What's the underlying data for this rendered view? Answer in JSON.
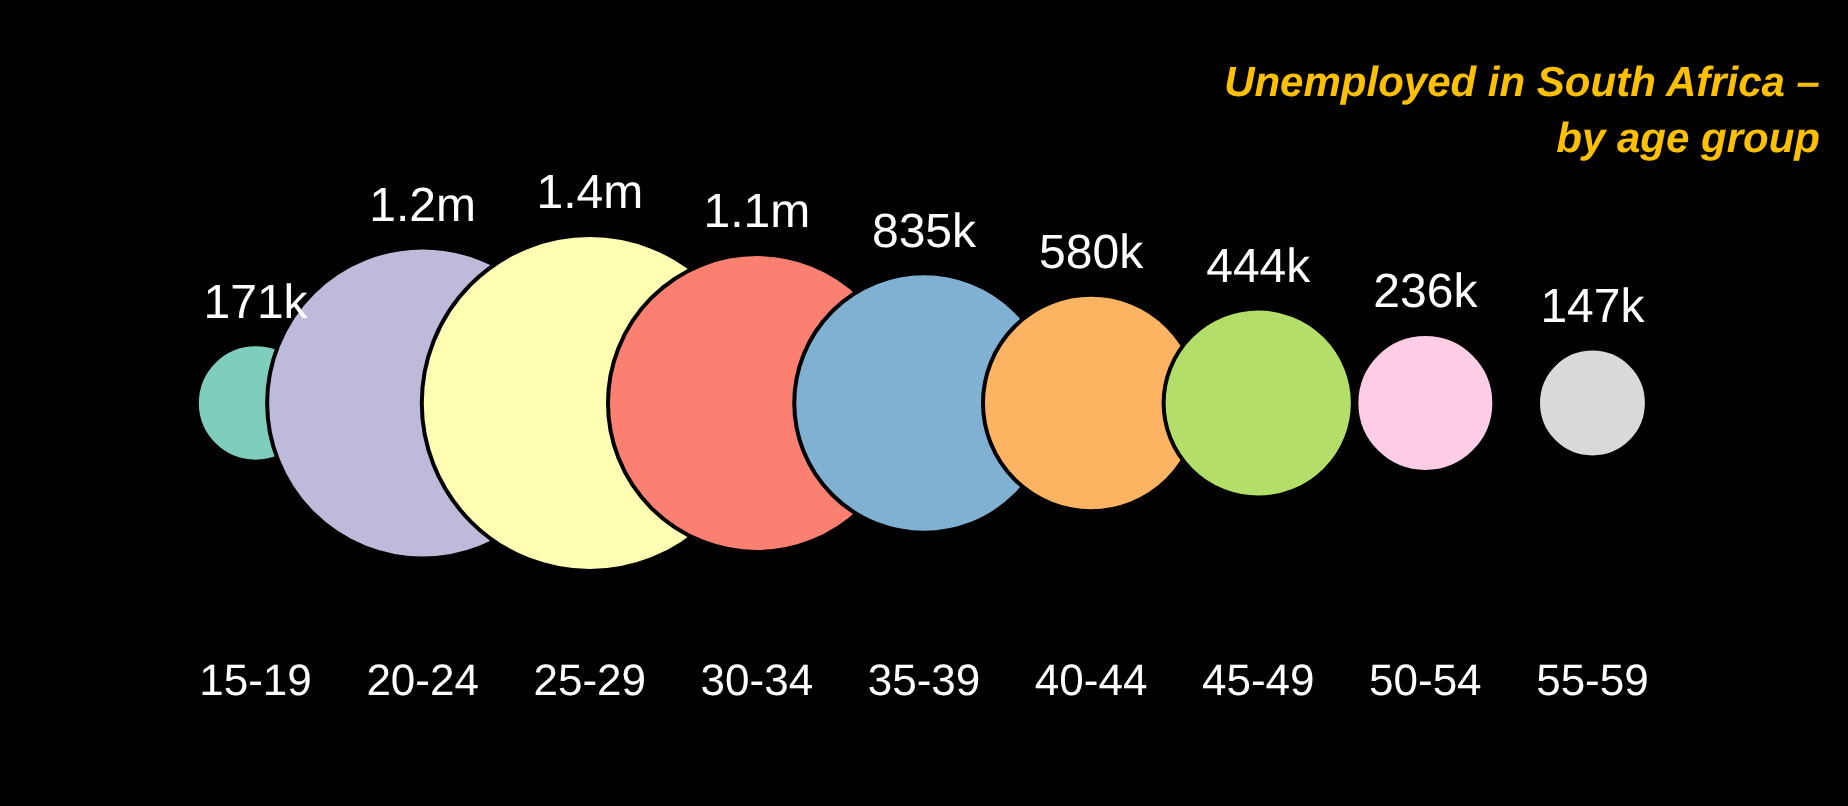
{
  "chart_data": {
    "type": "other",
    "title": "Unemployed in South Africa – by age group",
    "categories": [
      "15-19",
      "20-24",
      "25-29",
      "30-34",
      "35-39",
      "40-44",
      "45-49",
      "50-54",
      "55-59"
    ],
    "values": [
      171000,
      1200000,
      1400000,
      1100000,
      835000,
      580000,
      444000,
      236000,
      147000
    ],
    "value_labels": [
      "171k",
      "1.2m",
      "1.4m",
      "1.1m",
      "835k",
      "580k",
      "444k",
      "236k",
      "147k"
    ],
    "colors": [
      "#7fcdbb",
      "#bebada",
      "#ffffb3",
      "#fb8072",
      "#80b1d3",
      "#fdb462",
      "#b3de69",
      "#fccde5",
      "#d9d9d9"
    ]
  }
}
